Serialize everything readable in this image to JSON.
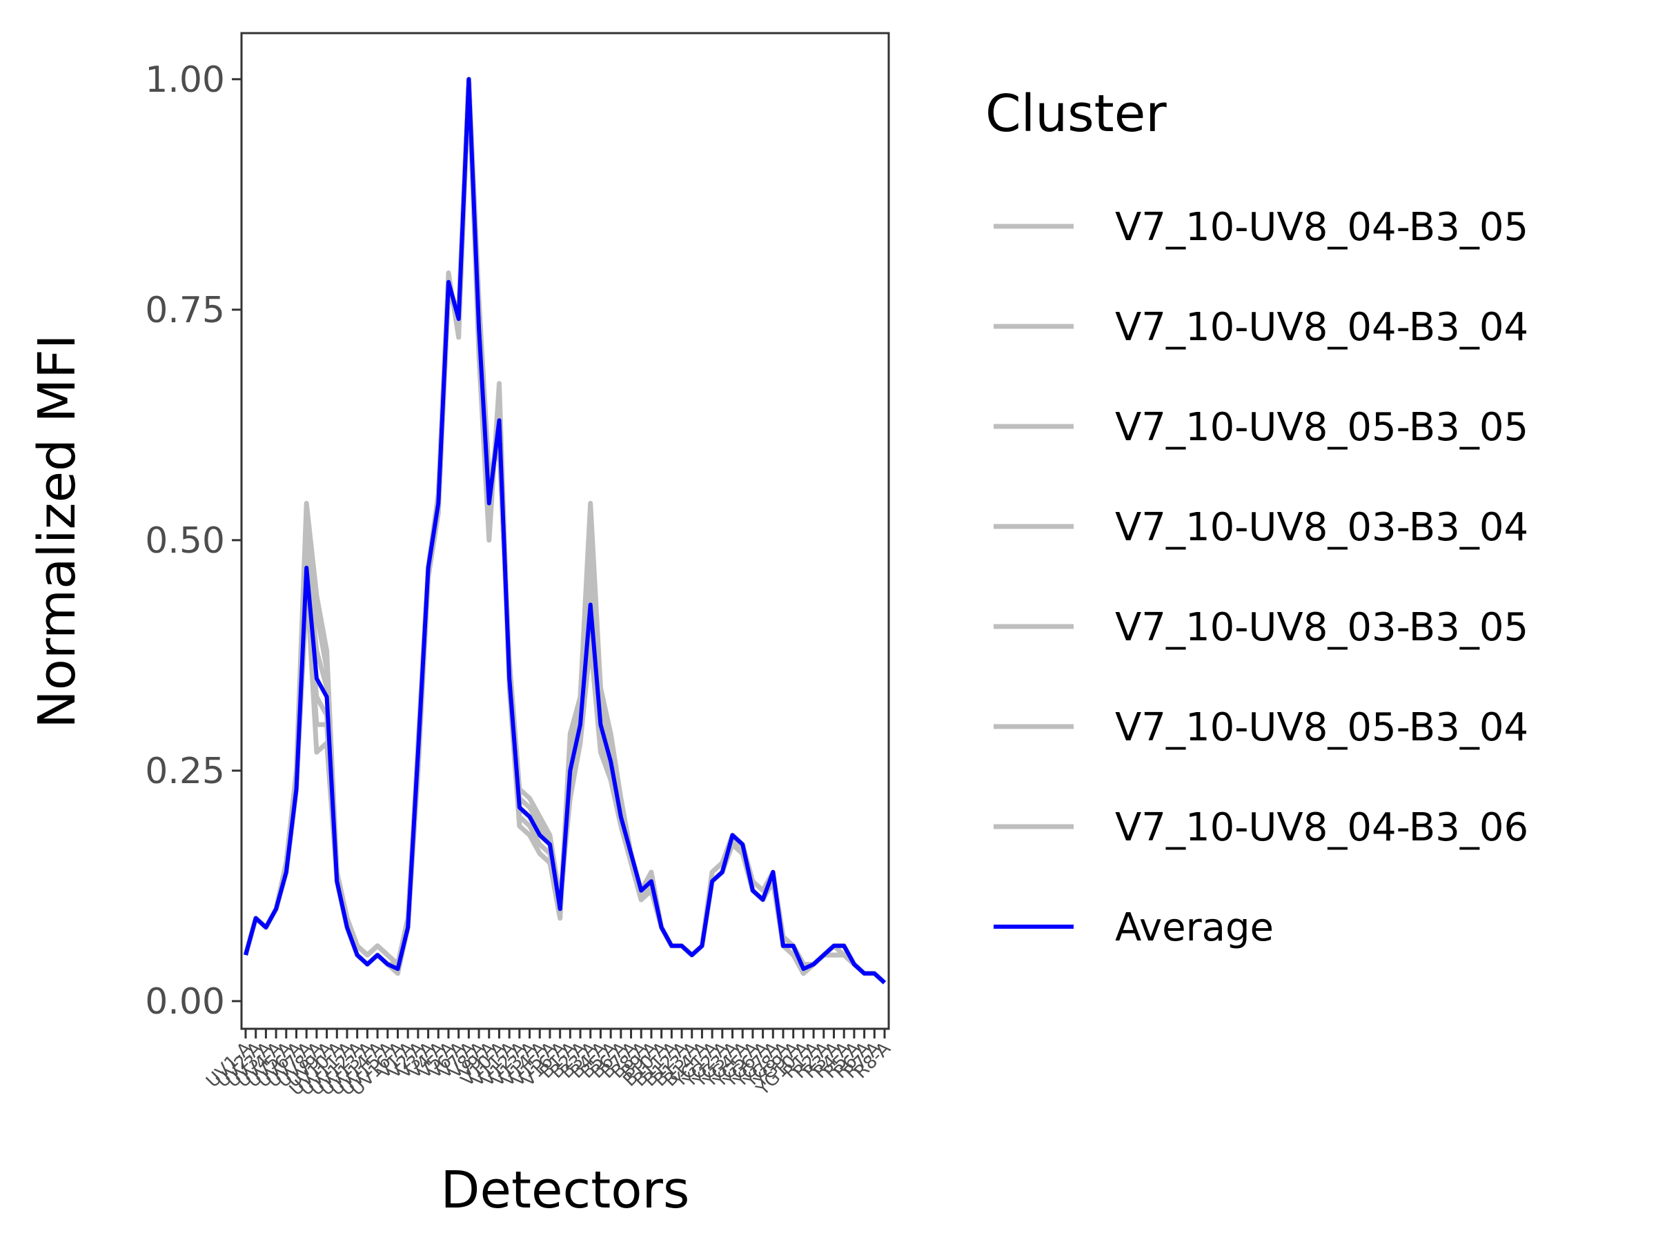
{
  "chart_data": {
    "type": "line",
    "title": "",
    "xlabel": "Detectors",
    "ylabel": "Normalized MFI",
    "ylim": [
      -0.03,
      1.05
    ],
    "yticks": [
      0,
      0.25,
      0.5,
      0.75,
      1
    ],
    "ytick_labels": [
      "0.00",
      "0.25",
      "0.50",
      "0.75",
      "1.00"
    ],
    "grid": false,
    "legend": {
      "title": "Cluster",
      "position": "right"
    },
    "colors": {
      "cluster": "#bebebe",
      "average": "#0000ff",
      "axis": "#333333"
    },
    "x": [
      "UV1-A",
      "UV2-A",
      "UV3-A",
      "UV4-A",
      "UV5-A",
      "UV6-A",
      "UV7-A",
      "UV8-A",
      "UV9-A",
      "UV10-A",
      "UV11-A",
      "UV12-A",
      "UV13-A",
      "UV14-A",
      "UV15-A",
      "UV16-A",
      "V1-A",
      "V2-A",
      "V3-A",
      "V4-A",
      "V5-A",
      "V6-A",
      "V7-A",
      "V8-A",
      "V9-A",
      "V10-A",
      "V11-A",
      "V12-A",
      "V13-A",
      "V14-A",
      "V15-A",
      "V16-A",
      "B1-A",
      "B2-A",
      "B3-A",
      "B4-A",
      "B5-A",
      "B6-A",
      "B7-A",
      "B8-A",
      "B9-A",
      "B10-A",
      "B11-A",
      "B12-A",
      "B13-A",
      "B14-A",
      "YG1-A",
      "YG2-A",
      "YG3-A",
      "YG4-A",
      "YG5-A",
      "YG6-A",
      "YG7-A",
      "YG8-A",
      "YG9-A",
      "YG10-A",
      "R1-A",
      "R2-A",
      "R3-A",
      "R4-A",
      "R5-A",
      "R6-A",
      "R7-A",
      "R8-A"
    ],
    "series": [
      {
        "name": "V7_10-UV8_04-B3_05",
        "values": [
          0.05,
          0.09,
          0.08,
          0.1,
          0.15,
          0.25,
          0.54,
          0.44,
          0.38,
          0.14,
          0.09,
          0.06,
          0.05,
          0.06,
          0.05,
          0.04,
          0.09,
          0.27,
          0.47,
          0.55,
          0.79,
          0.72,
          1,
          0.7,
          0.5,
          0.67,
          0.34,
          0.19,
          0.18,
          0.16,
          0.15,
          0.09,
          0.29,
          0.33,
          0.54,
          0.34,
          0.29,
          0.22,
          0.16,
          0.11,
          0.13,
          0.08,
          0.06,
          0.06,
          0.05,
          0.06,
          0.14,
          0.15,
          0.18,
          0.17,
          0.12,
          0.11,
          0.14,
          0.06,
          0.06,
          0.04,
          0.04,
          0.05,
          0.06,
          0.06,
          0.04,
          0.03,
          0.03,
          0.02
        ]
      },
      {
        "name": "V7_10-UV8_04-B3_04",
        "values": [
          0.05,
          0.09,
          0.08,
          0.1,
          0.15,
          0.24,
          0.5,
          0.42,
          0.36,
          0.14,
          0.09,
          0.06,
          0.05,
          0.06,
          0.05,
          0.04,
          0.09,
          0.26,
          0.47,
          0.54,
          0.78,
          0.73,
          1,
          0.71,
          0.52,
          0.65,
          0.35,
          0.2,
          0.19,
          0.17,
          0.16,
          0.1,
          0.27,
          0.32,
          0.5,
          0.32,
          0.28,
          0.21,
          0.16,
          0.12,
          0.14,
          0.08,
          0.06,
          0.06,
          0.05,
          0.06,
          0.14,
          0.15,
          0.18,
          0.17,
          0.13,
          0.12,
          0.14,
          0.07,
          0.06,
          0.04,
          0.04,
          0.05,
          0.06,
          0.06,
          0.04,
          0.03,
          0.03,
          0.02
        ]
      },
      {
        "name": "V7_10-UV8_05-B3_05",
        "values": [
          0.05,
          0.09,
          0.08,
          0.1,
          0.14,
          0.23,
          0.48,
          0.38,
          0.34,
          0.13,
          0.08,
          0.05,
          0.04,
          0.05,
          0.04,
          0.04,
          0.08,
          0.25,
          0.46,
          0.53,
          0.78,
          0.74,
          1,
          0.73,
          0.54,
          0.64,
          0.36,
          0.21,
          0.2,
          0.18,
          0.17,
          0.1,
          0.25,
          0.3,
          0.46,
          0.3,
          0.27,
          0.21,
          0.16,
          0.12,
          0.13,
          0.08,
          0.06,
          0.06,
          0.05,
          0.06,
          0.13,
          0.14,
          0.18,
          0.17,
          0.12,
          0.11,
          0.14,
          0.06,
          0.06,
          0.04,
          0.04,
          0.05,
          0.06,
          0.06,
          0.04,
          0.03,
          0.03,
          0.02
        ]
      },
      {
        "name": "V7_10-UV8_03-B3_04",
        "values": [
          0.05,
          0.09,
          0.08,
          0.1,
          0.14,
          0.23,
          0.45,
          0.3,
          0.3,
          0.13,
          0.08,
          0.05,
          0.04,
          0.05,
          0.04,
          0.04,
          0.08,
          0.27,
          0.46,
          0.53,
          0.77,
          0.75,
          1,
          0.75,
          0.56,
          0.61,
          0.36,
          0.22,
          0.21,
          0.19,
          0.17,
          0.1,
          0.23,
          0.29,
          0.41,
          0.28,
          0.25,
          0.2,
          0.15,
          0.12,
          0.12,
          0.08,
          0.06,
          0.06,
          0.05,
          0.06,
          0.13,
          0.14,
          0.17,
          0.16,
          0.12,
          0.11,
          0.13,
          0.06,
          0.06,
          0.03,
          0.04,
          0.05,
          0.05,
          0.05,
          0.04,
          0.03,
          0.03,
          0.02
        ]
      },
      {
        "name": "V7_10-UV8_03-B3_05",
        "values": [
          0.05,
          0.09,
          0.08,
          0.1,
          0.14,
          0.23,
          0.46,
          0.27,
          0.28,
          0.13,
          0.08,
          0.05,
          0.04,
          0.05,
          0.04,
          0.04,
          0.08,
          0.28,
          0.47,
          0.54,
          0.77,
          0.74,
          1,
          0.76,
          0.57,
          0.6,
          0.37,
          0.23,
          0.22,
          0.2,
          0.18,
          0.11,
          0.22,
          0.28,
          0.39,
          0.27,
          0.24,
          0.19,
          0.15,
          0.11,
          0.12,
          0.08,
          0.06,
          0.06,
          0.05,
          0.06,
          0.13,
          0.14,
          0.17,
          0.16,
          0.12,
          0.11,
          0.13,
          0.06,
          0.05,
          0.03,
          0.04,
          0.05,
          0.05,
          0.05,
          0.04,
          0.03,
          0.03,
          0.02
        ]
      },
      {
        "name": "V7_10-UV8_05-B3_04",
        "values": [
          0.05,
          0.09,
          0.08,
          0.1,
          0.14,
          0.23,
          0.44,
          0.33,
          0.31,
          0.13,
          0.08,
          0.05,
          0.04,
          0.05,
          0.04,
          0.03,
          0.08,
          0.26,
          0.46,
          0.53,
          0.78,
          0.74,
          1,
          0.74,
          0.55,
          0.62,
          0.35,
          0.21,
          0.2,
          0.18,
          0.17,
          0.1,
          0.24,
          0.3,
          0.44,
          0.3,
          0.26,
          0.2,
          0.15,
          0.11,
          0.12,
          0.08,
          0.06,
          0.06,
          0.05,
          0.06,
          0.13,
          0.14,
          0.18,
          0.16,
          0.12,
          0.11,
          0.14,
          0.06,
          0.06,
          0.04,
          0.04,
          0.05,
          0.06,
          0.05,
          0.04,
          0.03,
          0.03,
          0.02
        ]
      },
      {
        "name": "V7_10-UV8_04-B3_06",
        "values": [
          0.05,
          0.09,
          0.08,
          0.1,
          0.15,
          0.24,
          0.52,
          0.43,
          0.37,
          0.14,
          0.09,
          0.06,
          0.05,
          0.06,
          0.05,
          0.04,
          0.09,
          0.27,
          0.47,
          0.55,
          0.78,
          0.73,
          1,
          0.71,
          0.51,
          0.66,
          0.34,
          0.19,
          0.18,
          0.16,
          0.15,
          0.09,
          0.28,
          0.33,
          0.52,
          0.33,
          0.29,
          0.22,
          0.16,
          0.11,
          0.13,
          0.08,
          0.06,
          0.06,
          0.05,
          0.06,
          0.14,
          0.15,
          0.18,
          0.17,
          0.12,
          0.11,
          0.14,
          0.06,
          0.06,
          0.04,
          0.04,
          0.05,
          0.06,
          0.06,
          0.04,
          0.03,
          0.03,
          0.02
        ]
      },
      {
        "name": "Average",
        "values": [
          0.05,
          0.09,
          0.08,
          0.1,
          0.14,
          0.23,
          0.47,
          0.35,
          0.33,
          0.13,
          0.08,
          0.05,
          0.04,
          0.05,
          0.04,
          0.035,
          0.08,
          0.27,
          0.47,
          0.54,
          0.78,
          0.74,
          1,
          0.73,
          0.54,
          0.63,
          0.35,
          0.21,
          0.2,
          0.18,
          0.17,
          0.1,
          0.25,
          0.3,
          0.43,
          0.3,
          0.26,
          0.2,
          0.16,
          0.12,
          0.13,
          0.08,
          0.06,
          0.06,
          0.05,
          0.06,
          0.13,
          0.14,
          0.18,
          0.17,
          0.12,
          0.11,
          0.14,
          0.06,
          0.06,
          0.035,
          0.04,
          0.05,
          0.06,
          0.06,
          0.04,
          0.03,
          0.03,
          0.02
        ]
      }
    ]
  }
}
